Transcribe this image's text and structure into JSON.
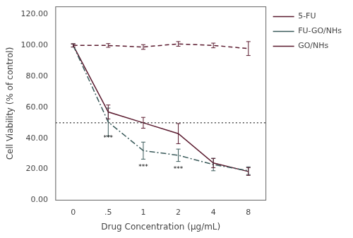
{
  "chart_data": {
    "type": "line",
    "xlabel": "Drug Concentration (μg/mL)",
    "ylabel": "Cell Viability (% of control)",
    "categories": [
      "0",
      ".5",
      "1",
      "2",
      "4",
      "8"
    ],
    "series": [
      {
        "name": "5-FU",
        "color": "#5a1a2e",
        "line_style": "dashed",
        "values": [
          100.0,
          100.0,
          99.0,
          101.0,
          100.0,
          98.0
        ],
        "errors": [
          1.0,
          1.2,
          1.5,
          1.5,
          1.5,
          4.5
        ]
      },
      {
        "name": "FU-GO/NHs",
        "color": "#3a5a5a",
        "line_style": "dashdot",
        "values": [
          100.0,
          50.5,
          32.0,
          29.0,
          23.0,
          19.0
        ],
        "errors": [
          1.0,
          9.0,
          5.5,
          4.0,
          4.0,
          2.5
        ]
      },
      {
        "name": "GO/NHs",
        "color": "#5a1a2e",
        "line_style": "solid",
        "values": [
          100.0,
          57.0,
          50.0,
          43.0,
          24.0,
          18.5
        ],
        "errors": [
          1.0,
          4.5,
          3.5,
          6.5,
          3.0,
          2.5
        ]
      }
    ],
    "hline": 50.0,
    "ylim": [
      0.0,
      125.0
    ],
    "yticks": [
      {
        "value": 0,
        "label": "0.00"
      },
      {
        "value": 20,
        "label": "20.00"
      },
      {
        "value": 40,
        "label": "40.00"
      },
      {
        "value": 60,
        "label": "60.00"
      },
      {
        "value": 80,
        "label": "80.00"
      },
      {
        "value": 100,
        "label": "100.00"
      },
      {
        "value": 120,
        "label": "120.00"
      }
    ],
    "annotations": [
      {
        "category": ".5",
        "y": 42.0,
        "text": "***"
      },
      {
        "category": "1",
        "y": 23.5,
        "text": "***"
      },
      {
        "category": "2",
        "y": 22.0,
        "text": "***"
      }
    ],
    "grid": false,
    "legend": "right"
  }
}
